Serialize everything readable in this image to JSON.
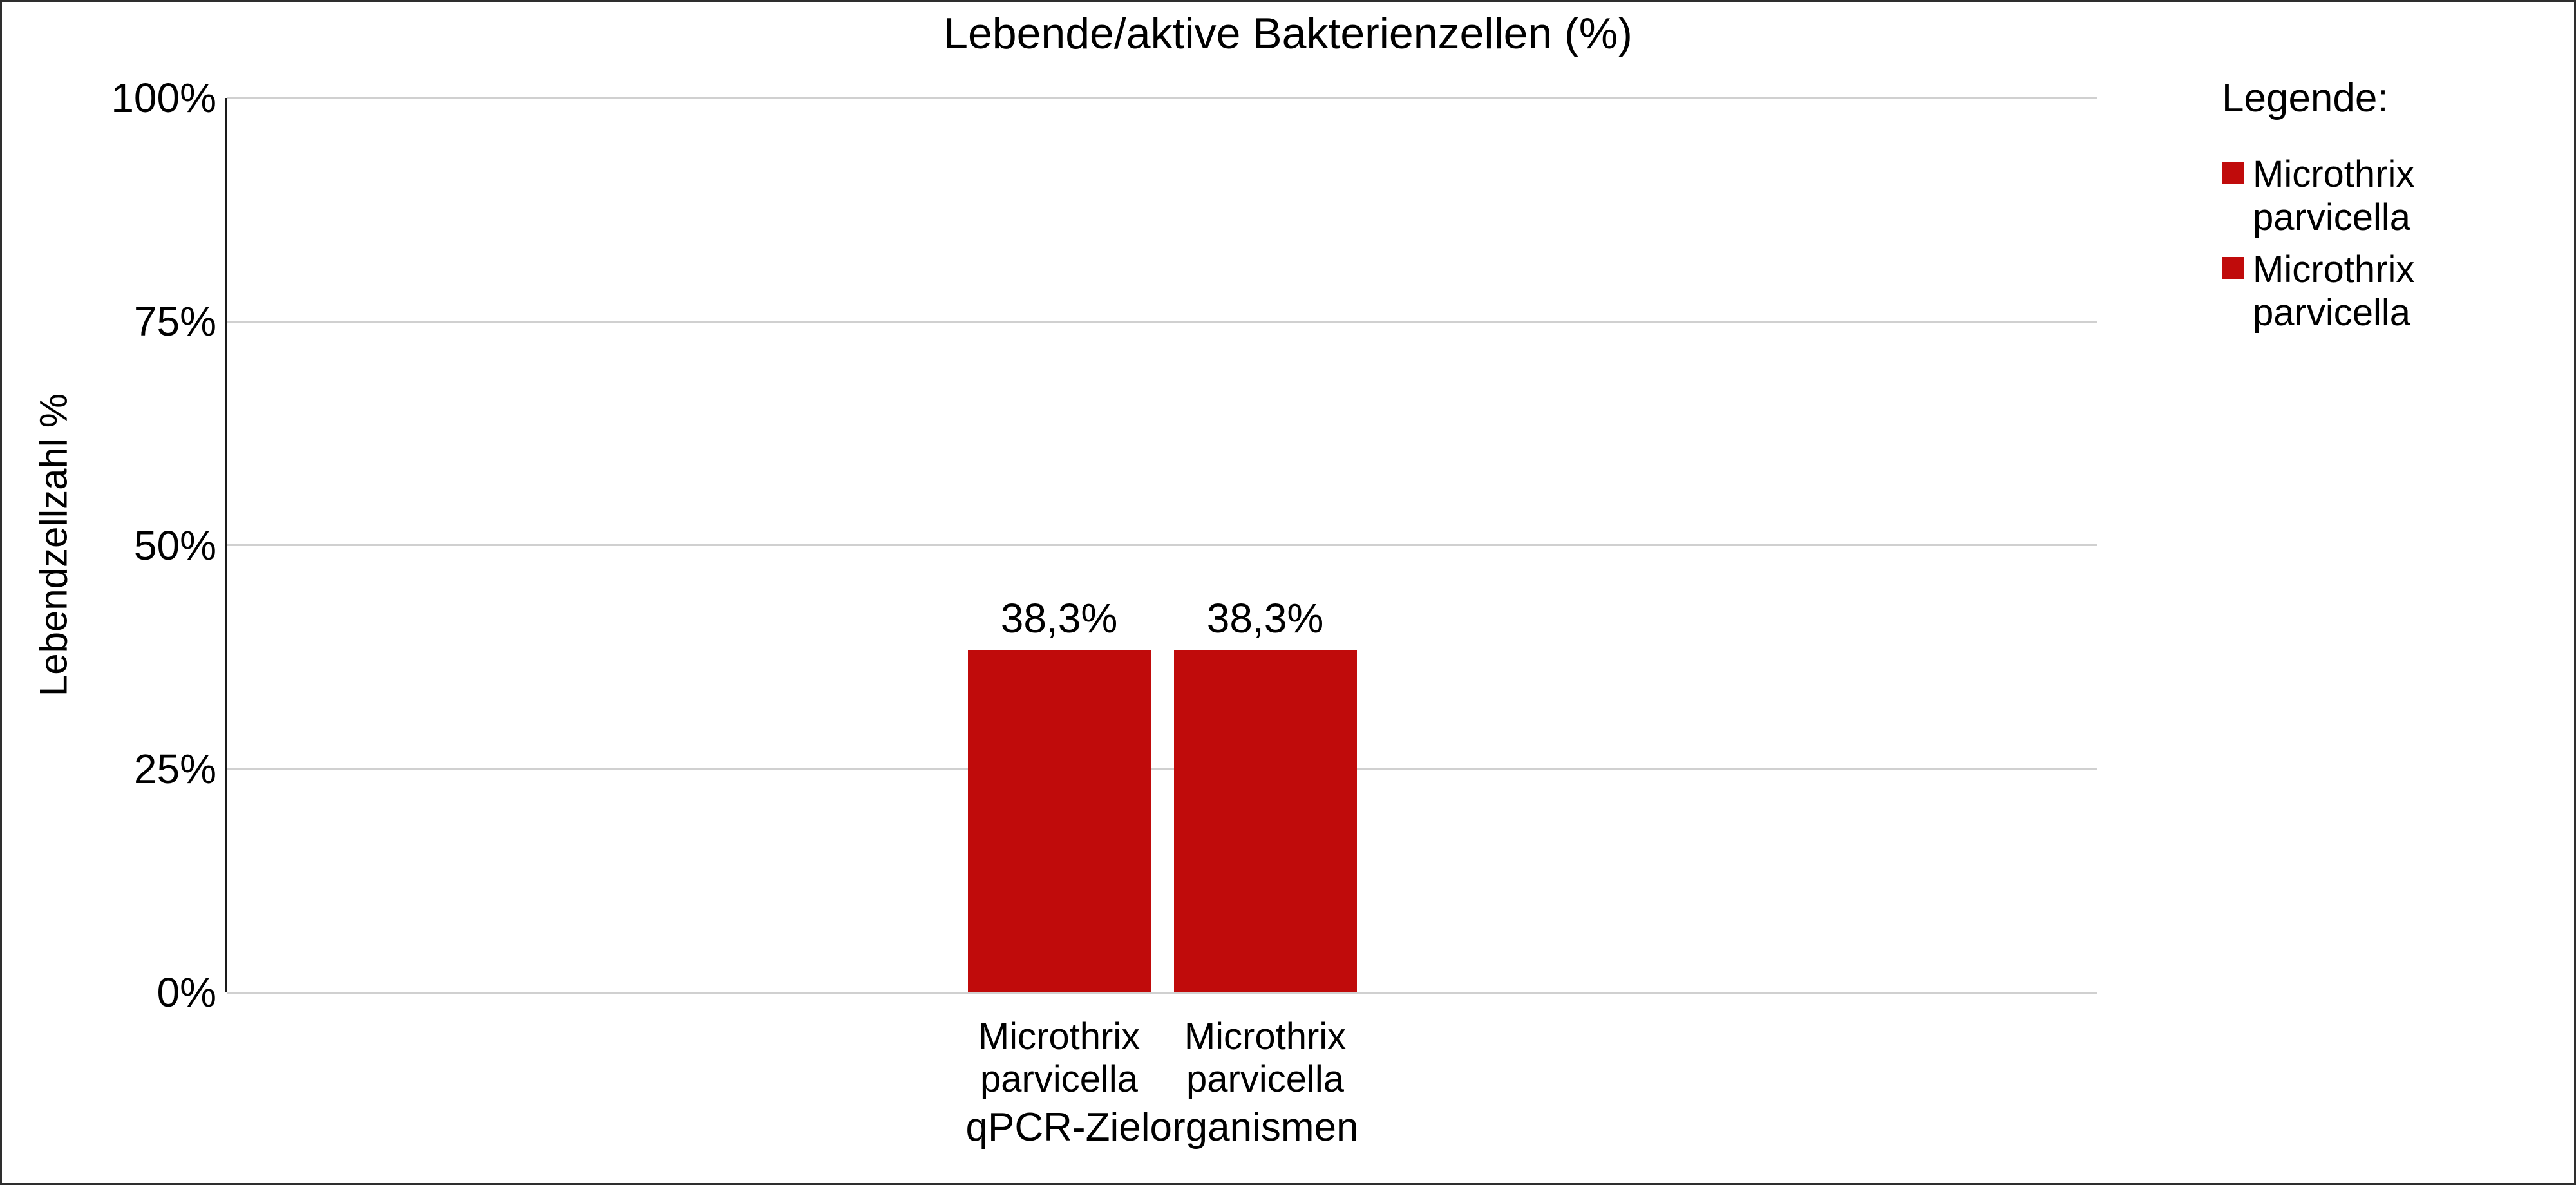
{
  "chart_data": {
    "type": "bar",
    "title": "Lebende/aktive Bakterienzellen (%)",
    "xlabel": "qPCR-Zielorganismen",
    "ylabel": "Lebendzellzahl %",
    "categories": [
      "Microthrix parvicella",
      "Microthrix parvicella"
    ],
    "values": [
      38.3,
      38.3
    ],
    "value_labels": [
      "38,3%",
      "38,3%"
    ],
    "ylim": [
      0,
      100
    ],
    "y_ticks": [
      {
        "label": "0%",
        "value": 0
      },
      {
        "label": "25%",
        "value": 25
      },
      {
        "label": "50%",
        "value": 50
      },
      {
        "label": "75%",
        "value": 75
      },
      {
        "label": "100%",
        "value": 100
      }
    ],
    "grid": true,
    "legend_position": "right",
    "colors": {
      "bar": "#C00B0B",
      "gridline": "#D0D0D0",
      "axis_line": "#1A1A1A",
      "text": "#000000",
      "background": "#FFFFFF",
      "border": "#2E2E2E"
    },
    "legend": {
      "title": "Legende:",
      "entries": [
        {
          "label": "Microthrix parvicella",
          "color": "#C00B0B"
        },
        {
          "label": "Microthrix parvicella",
          "color": "#C00B0B"
        }
      ]
    }
  }
}
